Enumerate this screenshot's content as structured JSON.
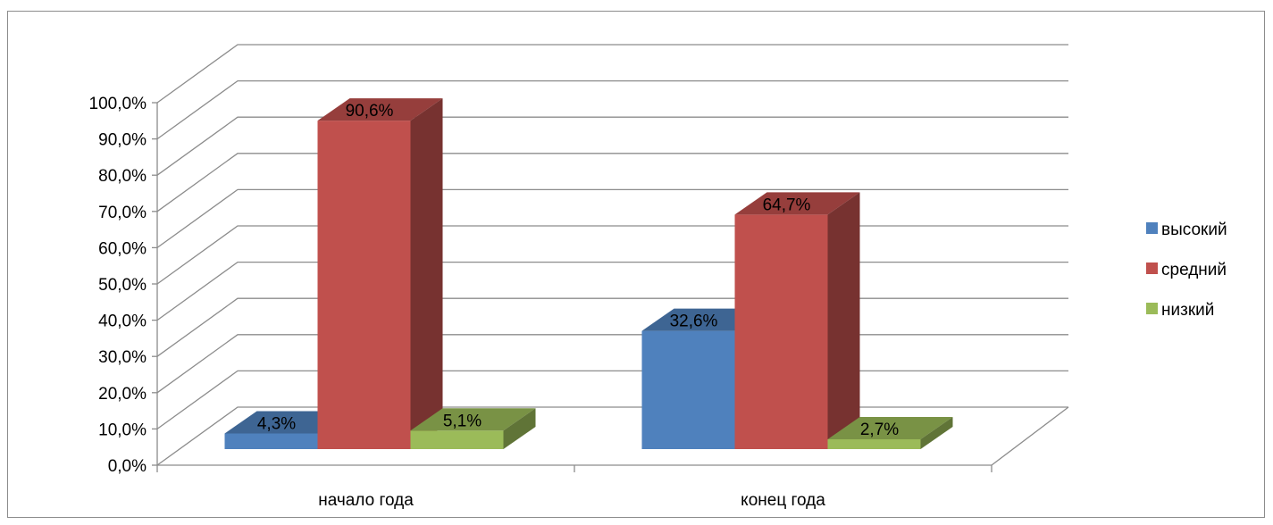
{
  "chart_data": {
    "type": "bar",
    "title": "",
    "xlabel": "",
    "ylabel": "",
    "ylim": [
      0,
      100
    ],
    "y_ticks": [
      "0,0%",
      "10,0%",
      "20,0%",
      "30,0%",
      "40,0%",
      "50,0%",
      "60,0%",
      "70,0%",
      "80,0%",
      "90,0%",
      "100,0%"
    ],
    "categories": [
      "начало года",
      "конец года"
    ],
    "series": [
      {
        "name": "высокий",
        "values": [
          4.3,
          32.6
        ],
        "labels": [
          "4,3%",
          "32,6%"
        ],
        "color": "#4f81bd"
      },
      {
        "name": "средний",
        "values": [
          90.6,
          64.7
        ],
        "labels": [
          "90,6%",
          "64,7%"
        ],
        "color": "#c0504d"
      },
      {
        "name": "низкий",
        "values": [
          5.1,
          2.7
        ],
        "labels": [
          "5,1%",
          "2,7%"
        ],
        "color": "#9bbb59"
      }
    ],
    "grid": true,
    "legend_position": "right",
    "style": "3d-clustered-column"
  }
}
